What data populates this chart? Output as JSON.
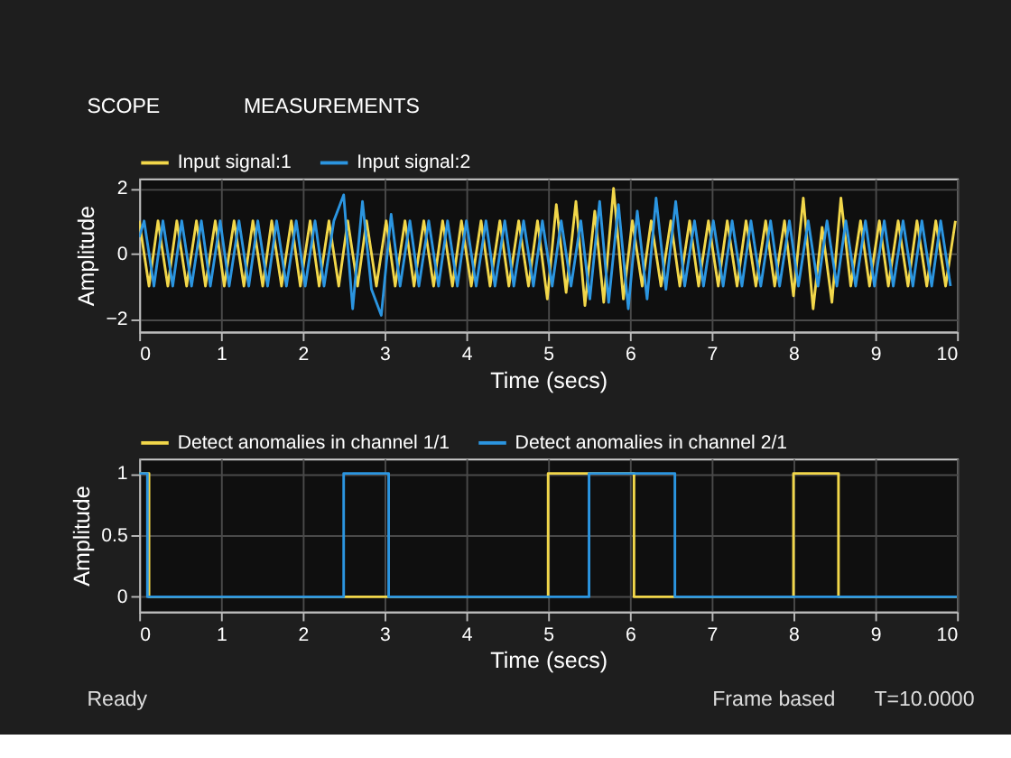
{
  "chart_data": [
    {
      "type": "line",
      "xlabel": "Time (secs)",
      "ylabel": "Amplitude",
      "annotations": [
        "SCOPE",
        "MEASUREMENTS"
      ],
      "xlim": [
        0,
        10
      ],
      "xticks": [
        0,
        1,
        2,
        3,
        4,
        5,
        6,
        7,
        8,
        9,
        10
      ],
      "ylim": [
        -2.4,
        2.3
      ],
      "yticks": [
        -2,
        0,
        2
      ],
      "grid": true,
      "legend": "top left",
      "series": [
        {
          "name": "Input signal:1",
          "color": "#f2d74a",
          "x": [
            0,
            0.12,
            0.23,
            0.35,
            0.46,
            0.58,
            0.7,
            0.81,
            0.93,
            1.04,
            1.16,
            1.28,
            1.39,
            1.51,
            1.62,
            1.74,
            1.86,
            1.97,
            2.09,
            2.2,
            2.32,
            2.44,
            2.55,
            2.67,
            2.78,
            2.9,
            3.02,
            3.13,
            3.25,
            3.36,
            3.48,
            3.6,
            3.71,
            3.83,
            3.94,
            4.06,
            4.18,
            4.29,
            4.41,
            4.52,
            4.64,
            4.76,
            4.87,
            4.99,
            5.1,
            5.22,
            5.34,
            5.45,
            5.57,
            5.68,
            5.8,
            5.92,
            6.03,
            6.15,
            6.26,
            6.38,
            6.5,
            6.61,
            6.73,
            6.84,
            6.96,
            7.08,
            7.19,
            7.31,
            7.42,
            7.54,
            7.66,
            7.77,
            7.89,
            8,
            8.12,
            8.24,
            8.35,
            8.47,
            8.58,
            8.7,
            8.82,
            8.93,
            9.05,
            9.16,
            9.28,
            9.4,
            9.51,
            9.63,
            9.74,
            9.86,
            9.98
          ],
          "values": [
            1,
            -1,
            1,
            -1,
            1,
            -1,
            1,
            -1,
            1,
            -1,
            1,
            -1,
            1,
            -1,
            1,
            -1,
            1,
            -1,
            1,
            -1,
            1,
            -1,
            1,
            -1,
            1,
            -1,
            1,
            -1,
            1,
            -1,
            1,
            -1,
            1,
            -1,
            1,
            -1,
            1,
            -1,
            1,
            -1,
            1,
            -1,
            1,
            -1.4,
            1.5,
            -1.2,
            1.6,
            -1.6,
            1.3,
            -1.5,
            2.0,
            -1.4,
            1,
            -1,
            1,
            -1,
            1,
            -1,
            1,
            -1,
            1,
            -1,
            1,
            -1,
            1,
            -1,
            1,
            -1,
            1,
            -1.3,
            1.7,
            -1.7,
            0.8,
            -1.5,
            1.7,
            -1,
            1,
            -1,
            1,
            -1,
            1,
            -1,
            1,
            -1,
            1,
            -1,
            1
          ]
        },
        {
          "name": "Input signal:2",
          "color": "#2b95e0",
          "x": [
            0,
            0.06,
            0.18,
            0.29,
            0.41,
            0.52,
            0.64,
            0.76,
            0.87,
            0.99,
            1.1,
            1.22,
            1.34,
            1.45,
            1.57,
            1.68,
            1.8,
            1.92,
            2.03,
            2.15,
            2.26,
            2.38,
            2.5,
            2.61,
            2.73,
            2.84,
            2.96,
            3.08,
            3.19,
            3.31,
            3.42,
            3.54,
            3.66,
            3.77,
            3.89,
            4,
            4.12,
            4.24,
            4.35,
            4.47,
            4.58,
            4.7,
            4.82,
            4.93,
            5.05,
            5.16,
            5.28,
            5.4,
            5.51,
            5.63,
            5.74,
            5.86,
            5.98,
            6.09,
            6.21,
            6.32,
            6.44,
            6.56,
            6.67,
            6.79,
            6.9,
            7.02,
            7.14,
            7.25,
            7.37,
            7.48,
            7.6,
            7.72,
            7.83,
            7.95,
            8.06,
            8.18,
            8.3,
            8.41,
            8.53,
            8.64,
            8.76,
            8.88,
            8.99,
            9.11,
            9.22,
            9.34,
            9.46,
            9.57,
            9.69,
            9.8,
            9.92
          ],
          "values": [
            0.5,
            1,
            -1,
            1,
            -1,
            1,
            -1,
            1,
            -1,
            1,
            -1,
            1,
            -1,
            1,
            -1,
            1,
            -1,
            1,
            -1,
            1,
            -1,
            1,
            1.8,
            -1.7,
            1.6,
            -1.1,
            -1.9,
            1.2,
            -1,
            1,
            -1,
            1,
            -1,
            1,
            -1,
            1,
            -1,
            1,
            -1,
            1,
            -1,
            1,
            -1,
            1,
            -1,
            1,
            -1,
            1,
            -1.4,
            1.6,
            -1.5,
            1.5,
            -1.7,
            1.3,
            -1.4,
            1.7,
            -1.1,
            1.6,
            -1,
            1,
            -1,
            1,
            -1,
            1,
            -1,
            1,
            -1,
            1,
            -1,
            1,
            -1,
            1,
            -1,
            1,
            -1,
            1,
            -1,
            1,
            -1,
            1,
            -1,
            1,
            -1,
            1,
            -1,
            1,
            -1
          ]
        }
      ]
    },
    {
      "type": "step",
      "xlabel": "Time (secs)",
      "ylabel": "Amplitude",
      "annotations": [
        "Ready",
        "Frame based",
        "T=10.0000"
      ],
      "xlim": [
        0,
        10
      ],
      "xticks": [
        0,
        1,
        2,
        3,
        4,
        5,
        6,
        7,
        8,
        9,
        10
      ],
      "ylim": [
        -0.12,
        1.12
      ],
      "yticks": [
        0,
        0.5,
        1
      ],
      "grid": true,
      "legend": "top left",
      "series": [
        {
          "name": "Detect anomalies in channel 1/1",
          "color": "#f2d74a",
          "x": [
            0,
            0.12,
            5,
            6.05,
            8,
            8.55,
            10
          ],
          "values": [
            1,
            0,
            1,
            0,
            1,
            0,
            0
          ]
        },
        {
          "name": "Detect anomalies in channel 2/1",
          "color": "#2b95e0",
          "x": [
            0,
            0.1,
            2.5,
            3.05,
            5.5,
            6.55,
            10
          ],
          "values": [
            1,
            0,
            1,
            0,
            1,
            0,
            0
          ]
        }
      ]
    }
  ]
}
